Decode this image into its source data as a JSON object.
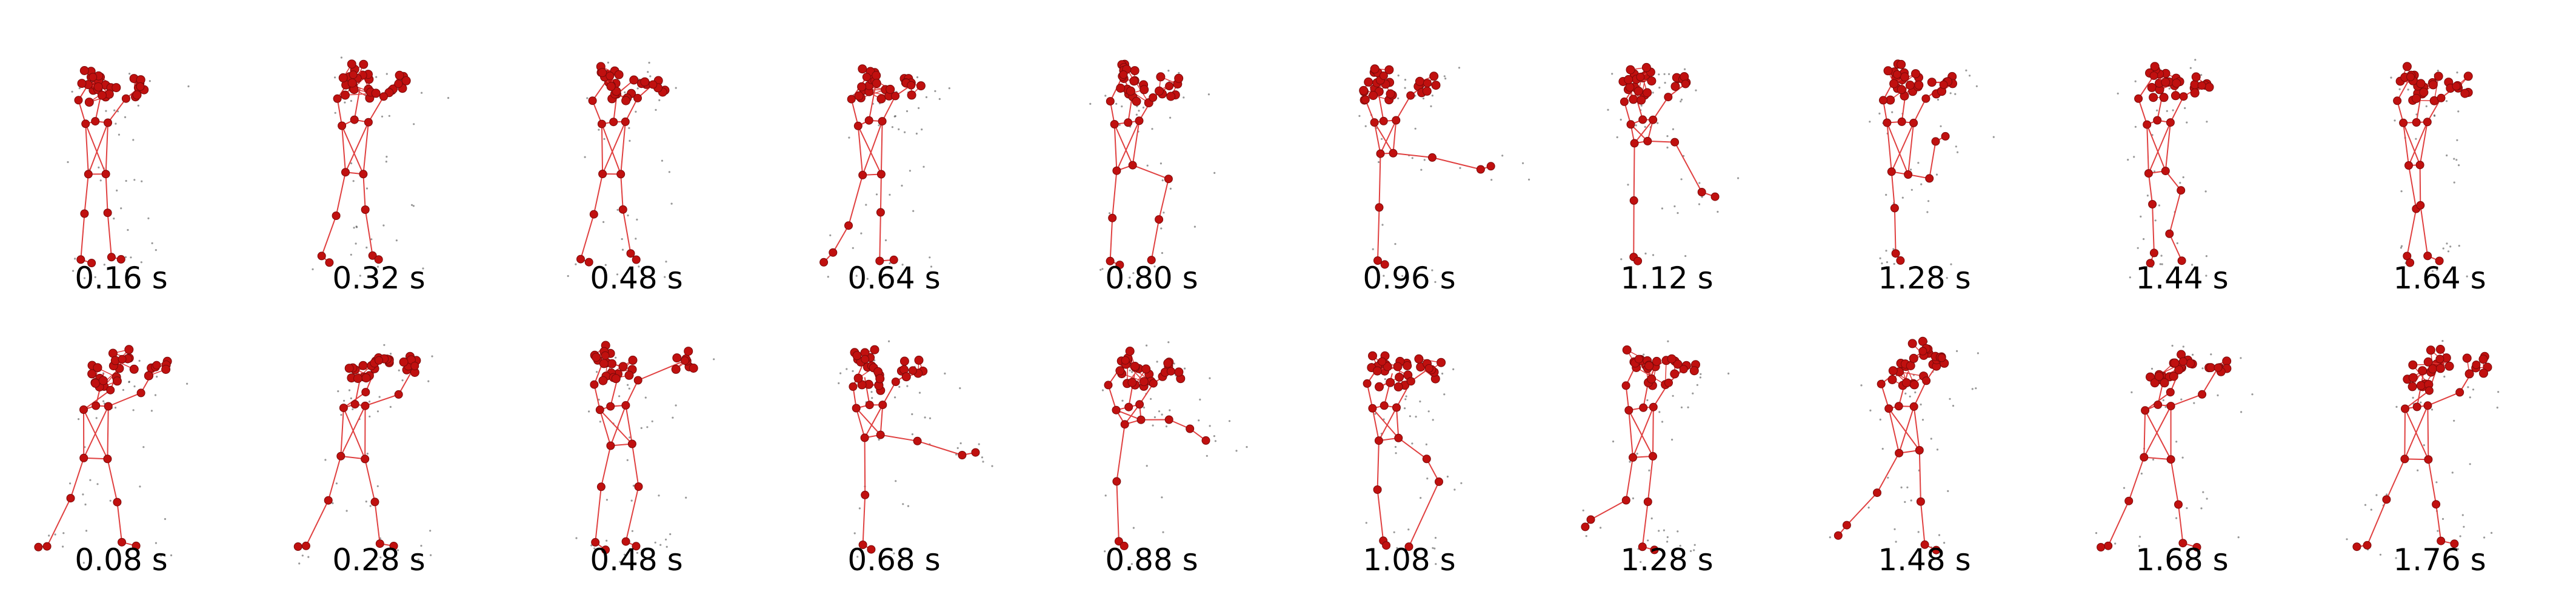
{
  "figure": {
    "rows": [
      {
        "frames": [
          {
            "time": "0.16 s",
            "pose": "upright-hands-raised"
          },
          {
            "time": "0.32 s",
            "pose": "upright-step"
          },
          {
            "time": "0.48 s",
            "pose": "upright-step"
          },
          {
            "time": "0.64 s",
            "pose": "crouch-knee-forward"
          },
          {
            "time": "0.80 s",
            "pose": "bent-knee-raised"
          },
          {
            "time": "0.96 s",
            "pose": "leg-extended-horizontal"
          },
          {
            "time": "1.12 s",
            "pose": "leg-extended-diagonal"
          },
          {
            "time": "1.28 s",
            "pose": "leg-bent-sideways"
          },
          {
            "time": "1.44 s",
            "pose": "upright-knee-bent"
          },
          {
            "time": "1.64 s",
            "pose": "upright-narrow"
          }
        ]
      },
      {
        "frames": [
          {
            "time": "0.08 s",
            "pose": "wide-stance-arms-up"
          },
          {
            "time": "0.28 s",
            "pose": "wide-stance-arms-up"
          },
          {
            "time": "0.48 s",
            "pose": "squat-arms-up"
          },
          {
            "time": "0.68 s",
            "pose": "leg-extended-horizontal"
          },
          {
            "time": "0.88 s",
            "pose": "leg-extended-sideways"
          },
          {
            "time": "1.08 s",
            "pose": "knee-raised-forward"
          },
          {
            "time": "1.28 s",
            "pose": "lunge-back"
          },
          {
            "time": "1.48 s",
            "pose": "lunge-back-wide"
          },
          {
            "time": "1.68 s",
            "pose": "wide-stance-arms-up"
          },
          {
            "time": "1.76 s",
            "pose": "wide-stance-arms-up"
          }
        ]
      }
    ]
  },
  "colors": {
    "joint_fill": "#c0100f",
    "joint_stroke": "#7a0a0a",
    "bone": "#e04040",
    "ghost_points": "#444444",
    "caption_text": "#000000"
  }
}
